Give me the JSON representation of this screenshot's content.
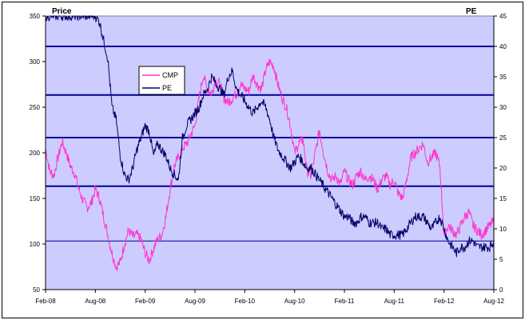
{
  "chart_data": {
    "type": "line",
    "title": "",
    "y_left_label": "Price",
    "y_right_label": "PE",
    "y_left_ticks": [
      "50",
      "100",
      "150",
      "200",
      "250",
      "300",
      "350"
    ],
    "y_left_range": [
      50,
      350
    ],
    "y_right_ticks": [
      "0",
      "5",
      "10",
      "15",
      "20",
      "25",
      "30",
      "35",
      "40",
      "45"
    ],
    "y_right_range": [
      0,
      45
    ],
    "x_tick_labels": [
      "Feb-08",
      "Aug-08",
      "Feb-09",
      "Aug-09",
      "Feb-10",
      "Aug-10",
      "Feb-11",
      "Aug-11",
      "Feb-12",
      "Aug-12"
    ],
    "x_range": [
      0,
      54
    ],
    "pe_reference_lines": [
      8,
      17,
      25,
      32,
      40
    ],
    "legend": "inside-upper-left",
    "colors": {
      "plot_bg": "#ccccff",
      "CMP": "#ff33cc",
      "PE": "#000066",
      "ref_line": "#000099"
    },
    "series": [
      {
        "name": "CMP",
        "axis": "left",
        "x": [
          0,
          0.5,
          1,
          1.5,
          2,
          2.5,
          3,
          3.5,
          4,
          4.5,
          5,
          5.5,
          6,
          6.5,
          7,
          7.5,
          8,
          8.5,
          9,
          9.5,
          10,
          10.5,
          11,
          11.5,
          12,
          12.5,
          13,
          13.5,
          14,
          14.5,
          15,
          15.5,
          16,
          16.5,
          17,
          17.5,
          18,
          18.5,
          19,
          19.5,
          20,
          20.5,
          21,
          21.5,
          22,
          22.5,
          23,
          23.5,
          24,
          24.5,
          25,
          25.5,
          26,
          26.5,
          27,
          27.5,
          28,
          28.5,
          29,
          29.5,
          30,
          30.5,
          31,
          31.5,
          32,
          32.5,
          33,
          33.5,
          34,
          34.5,
          35,
          35.5,
          36,
          36.5,
          37,
          37.5,
          38,
          38.5,
          39,
          39.5,
          40,
          40.5,
          41,
          41.5,
          42,
          42.5,
          43,
          43.5,
          44,
          44.5,
          45,
          45.5,
          46,
          46.5,
          47,
          47.5,
          48,
          48.5,
          49,
          49.5,
          50,
          50.5,
          51,
          51.5,
          52,
          52.5,
          53,
          53.5,
          54
        ],
        "values": [
          205,
          180,
          175,
          195,
          212,
          200,
          185,
          178,
          160,
          148,
          140,
          145,
          160,
          150,
          130,
          110,
          90,
          75,
          80,
          100,
          115,
          108,
          110,
          105,
          90,
          82,
          95,
          105,
          110,
          130,
          160,
          185,
          195,
          205,
          210,
          220,
          230,
          260,
          285,
          270,
          265,
          280,
          275,
          260,
          255,
          260,
          265,
          275,
          270,
          268,
          285,
          275,
          270,
          290,
          300,
          295,
          275,
          260,
          250,
          230,
          200,
          210,
          215,
          180,
          175,
          200,
          225,
          200,
          180,
          170,
          175,
          165,
          180,
          170,
          165,
          175,
          180,
          170,
          175,
          170,
          160,
          170,
          175,
          165,
          170,
          155,
          150,
          170,
          195,
          200,
          205,
          210,
          190,
          195,
          200,
          185,
          110,
          120,
          115,
          110,
          120,
          130,
          135,
          120,
          115,
          110,
          115,
          120,
          125
        ]
      },
      {
        "name": "PE",
        "axis": "right",
        "x": [
          0,
          0.5,
          1,
          1.5,
          2,
          2.5,
          3,
          3.5,
          4,
          4.5,
          5,
          5.5,
          6,
          6.5,
          7,
          7.5,
          8,
          8.5,
          9,
          9.5,
          10,
          10.5,
          11,
          11.5,
          12,
          12.5,
          13,
          13.5,
          14,
          14.5,
          15,
          15.5,
          16,
          16.5,
          17,
          17.5,
          18,
          18.5,
          19,
          19.5,
          20,
          20.5,
          21,
          21.5,
          22,
          22.5,
          23,
          23.5,
          24,
          24.5,
          25,
          25.5,
          26,
          26.5,
          27,
          27.5,
          28,
          28.5,
          29,
          29.5,
          30,
          30.5,
          31,
          31.5,
          32,
          32.5,
          33,
          33.5,
          34,
          34.5,
          35,
          35.5,
          36,
          36.5,
          37,
          37.5,
          38,
          38.5,
          39,
          39.5,
          40,
          40.5,
          41,
          41.5,
          42,
          42.5,
          43,
          43.5,
          44,
          44.5,
          45,
          45.5,
          46,
          46.5,
          47,
          47.5,
          48,
          48.5,
          49,
          49.5,
          50,
          50.5,
          51,
          51.5,
          52,
          52.5,
          53,
          53.5,
          54
        ],
        "values": [
          45,
          45,
          45,
          45,
          45,
          45,
          45,
          45,
          45,
          45,
          45,
          45,
          45,
          44,
          41,
          38,
          30,
          28,
          22,
          19,
          18,
          20,
          23,
          25,
          27,
          26,
          22,
          24,
          23,
          22,
          20,
          19,
          18,
          25,
          27,
          28,
          29,
          30,
          32,
          33,
          35,
          34,
          33,
          32,
          35,
          36,
          33,
          32,
          31,
          30,
          29,
          30,
          31,
          30,
          28,
          25,
          23,
          22,
          21,
          20,
          21,
          22,
          21,
          20,
          20,
          19,
          18,
          17,
          16,
          15,
          14,
          13,
          12,
          12,
          11,
          11,
          12,
          12,
          11,
          11,
          11,
          10,
          10,
          9,
          9,
          9,
          9,
          10,
          11,
          12,
          12,
          12,
          11,
          10,
          11,
          12,
          10,
          8,
          7,
          6,
          7,
          7,
          8,
          8,
          7,
          7,
          7,
          7,
          8
        ]
      }
    ]
  }
}
